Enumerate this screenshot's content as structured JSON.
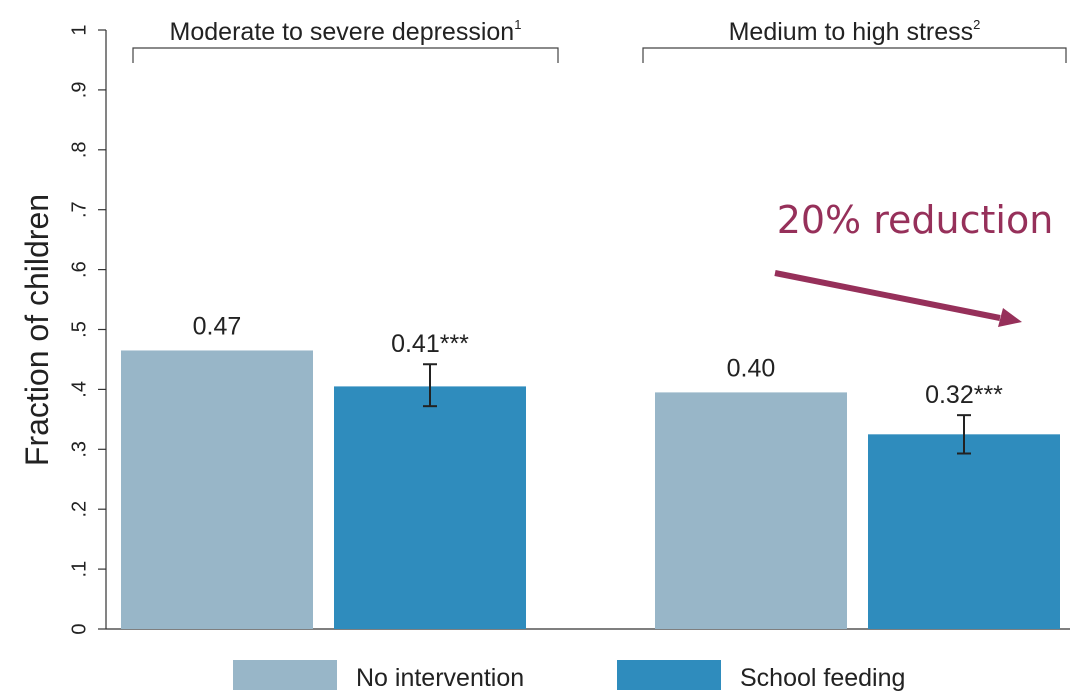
{
  "chart_data": {
    "type": "bar",
    "ylabel": "Fraction of children",
    "ylim": [
      0,
      1
    ],
    "yticks": [
      {
        "value": 0,
        "label": "0"
      },
      {
        "value": 0.1,
        "label": ".1"
      },
      {
        "value": 0.2,
        "label": ".2"
      },
      {
        "value": 0.3,
        "label": ".3"
      },
      {
        "value": 0.4,
        "label": ".4"
      },
      {
        "value": 0.5,
        "label": ".5"
      },
      {
        "value": 0.6,
        "label": ".6"
      },
      {
        "value": 0.7,
        "label": ".7"
      },
      {
        "value": 0.8,
        "label": ".8"
      },
      {
        "value": 0.9,
        "label": ".9"
      },
      {
        "value": 1,
        "label": "1"
      }
    ],
    "groups": [
      {
        "label": "Moderate to severe depression",
        "footnote": "1"
      },
      {
        "label": "Medium to high stress",
        "footnote": "2"
      }
    ],
    "series": [
      {
        "name": "No intervention",
        "color": "#98b6c8",
        "values": [
          0.465,
          0.395
        ],
        "labels": [
          "0.47",
          "0.40"
        ],
        "ci": [
          null,
          null
        ]
      },
      {
        "name": "School feeding",
        "color": "#2f8cbd",
        "values": [
          0.405,
          0.325
        ],
        "labels": [
          "0.41***",
          "0.32***"
        ],
        "ci": [
          [
            0.372,
            0.442
          ],
          [
            0.293,
            0.357
          ]
        ]
      }
    ],
    "legend_position": "bottom",
    "annotation": {
      "text": "20% reduction",
      "color": "#96305a"
    }
  }
}
